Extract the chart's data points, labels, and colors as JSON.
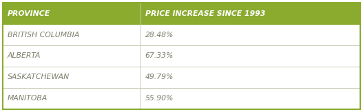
{
  "header": [
    "PROVINCE",
    "PRICE INCREASE SINCE 1993"
  ],
  "rows": [
    [
      "BRITISH COLUMBIA",
      "28.48%"
    ],
    [
      "ALBERTA",
      "67.33%"
    ],
    [
      "SASKATCHEWAN",
      "49.79%"
    ],
    [
      "MANITOBA",
      "55.90%"
    ]
  ],
  "header_bg_color": "#8aab2e",
  "header_text_color": "#ffffff",
  "row_bg_color": "#ffffff",
  "row_text_color": "#7d7d6b",
  "border_color": "#c8c8b4",
  "outer_border_color": "#8aab2e",
  "col_split": 0.385,
  "fig_width": 5.27,
  "fig_height": 1.63,
  "dpi": 100,
  "font_size": 7.8,
  "header_font_size": 7.8
}
